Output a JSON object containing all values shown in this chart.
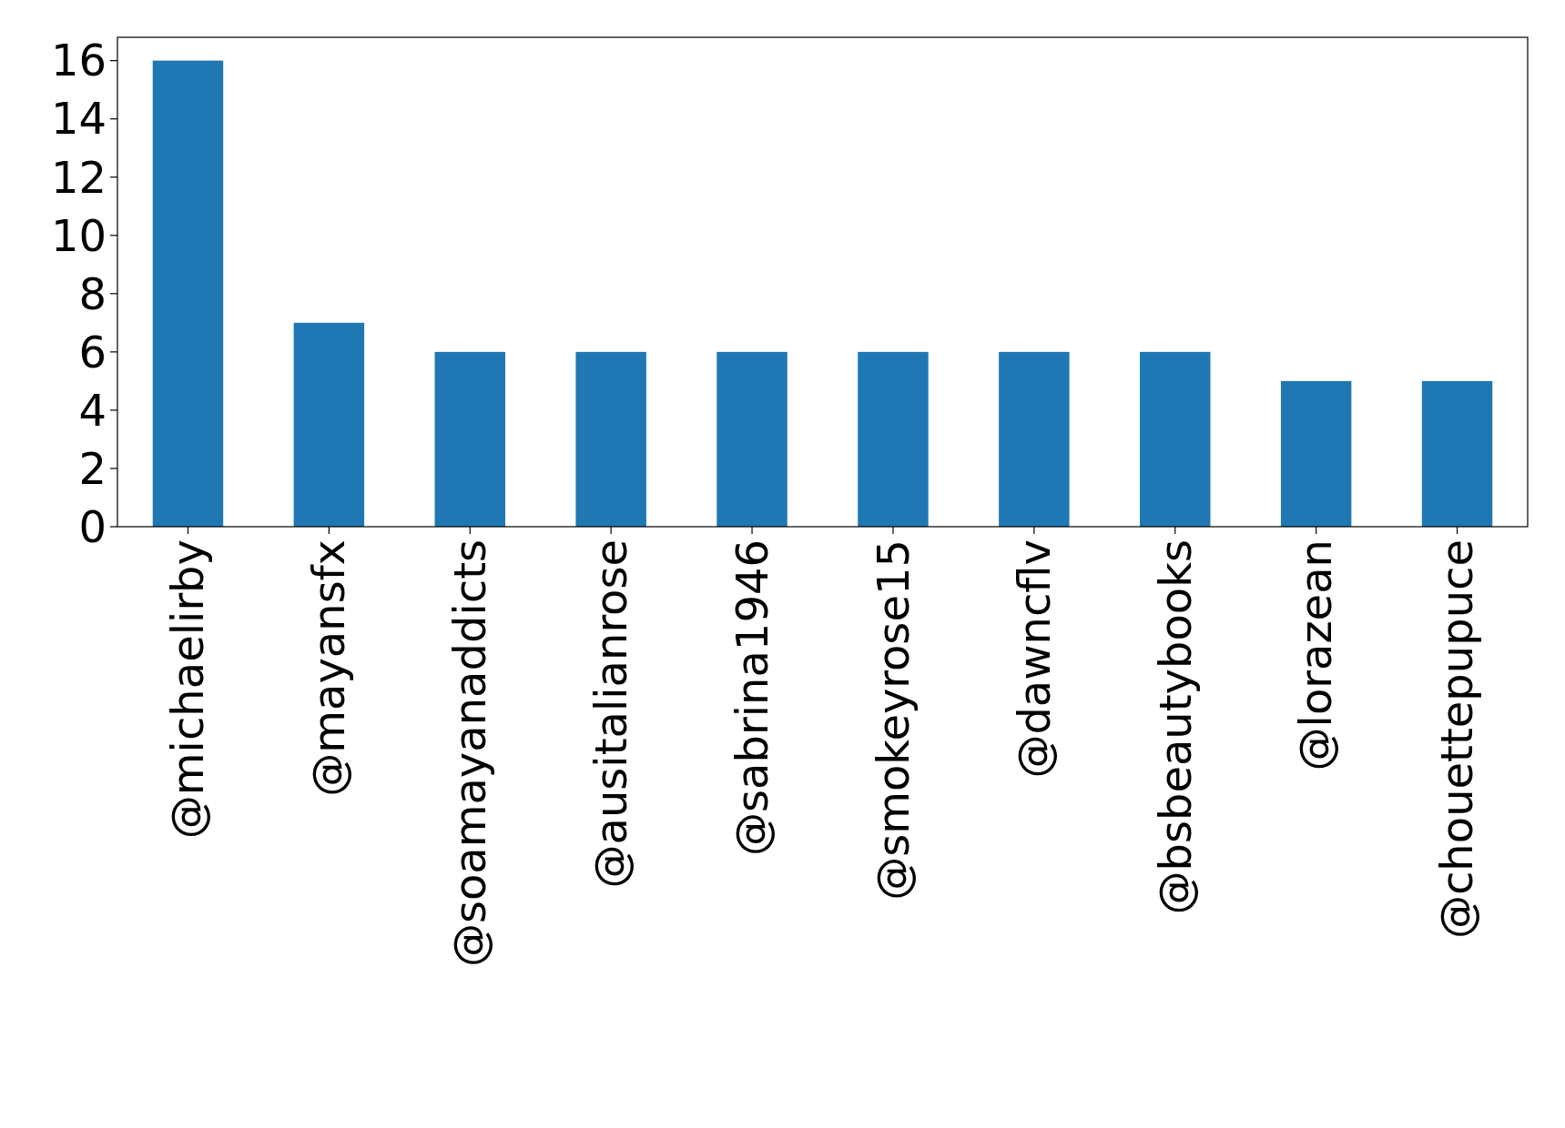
{
  "chart_data": {
    "type": "bar",
    "categories": [
      "@michaelirby",
      "@mayansfx",
      "@soamayanaddicts",
      "@ausitalianrose",
      "@sabrina1946",
      "@smokeyrose15",
      "@dawncflv",
      "@bsbeautybooks",
      "@lorazean",
      "@chouettepupuce"
    ],
    "values": [
      16,
      7,
      6,
      6,
      6,
      6,
      6,
      6,
      5,
      5
    ],
    "color": "#1f77b4",
    "ylim": [
      0,
      16.8
    ],
    "yticks": [
      0,
      2,
      4,
      6,
      8,
      10,
      12,
      14,
      16
    ],
    "grid": false
  }
}
